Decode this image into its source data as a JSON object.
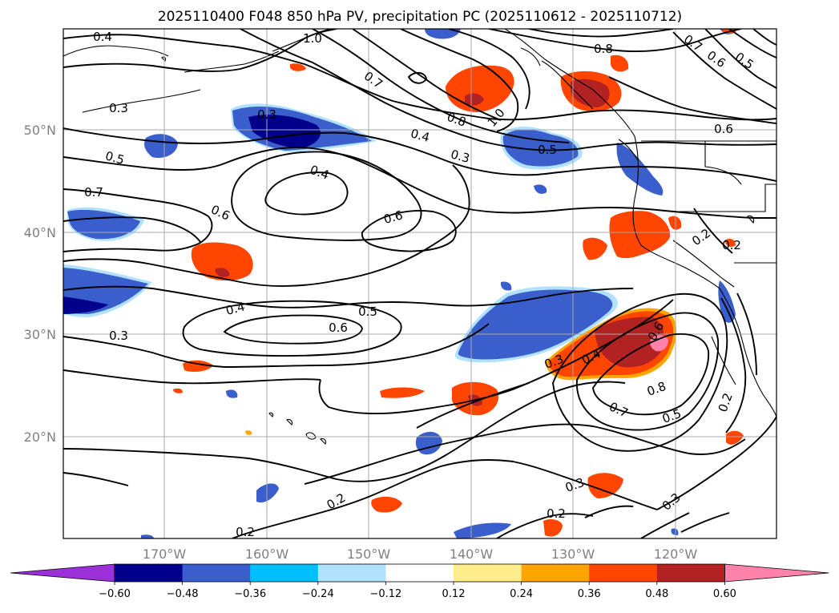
{
  "title": "2025110400 F048 850 hPa PV, precipitation PC (2025110612 - 2025110712)",
  "map": {
    "lon_labels": [
      "170°W",
      "160°W",
      "150°W",
      "140°W",
      "130°W",
      "120°W"
    ],
    "lat_labels": [
      "50°N",
      "40°N",
      "30°N",
      "20°N"
    ],
    "gridlines": true
  },
  "colorbar": {
    "tick_labels": [
      "−0.60",
      "−0.48",
      "−0.36",
      "−0.24",
      "−0.12",
      "0.12",
      "0.24",
      "0.36",
      "0.48",
      "0.60"
    ],
    "colors": [
      "#9b30d9",
      "#00008b",
      "#3a5fcd",
      "#00bfff",
      "#b0e2ff",
      "#ffffff",
      "#ffec8b",
      "#ffa500",
      "#ff4500",
      "#b22222",
      "#ff82ab"
    ],
    "extend": "both"
  },
  "contour_labels": [
    "0.4",
    "1.0",
    "0.8",
    "0.7",
    "0.6",
    "0.5",
    "0.3",
    "0.3",
    "0.7",
    "0.8",
    "1.0",
    "0.4",
    "0.3",
    "0.5",
    "0.6",
    "0.5",
    "0.7",
    "0.6",
    "0.4",
    "0.6",
    "0.2",
    "0.2",
    "0.4",
    "0.5",
    "0.6",
    "0.3",
    "0.3",
    "0.4",
    "0.6",
    "0.8",
    "0.7",
    "0.5",
    "0.2",
    "0.3",
    "0.2",
    "0.2",
    "0.2",
    "0.3"
  ]
}
